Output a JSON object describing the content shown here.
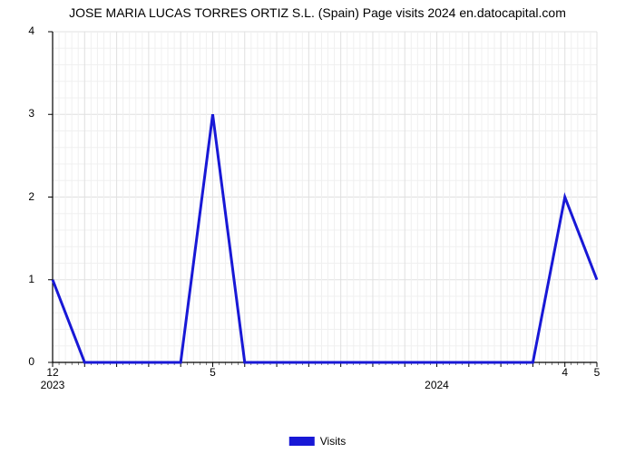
{
  "chart": {
    "type": "line",
    "title": "JOSE MARIA LUCAS TORRES ORTIZ S.L. (Spain) Page visits 2024 en.datocapital.com",
    "title_fontsize": 14,
    "background_color": "#ffffff",
    "grid_major_color": "#e0e0e0",
    "grid_minor_color": "#f0f0f0",
    "axis_color": "#000000",
    "ylim": [
      0,
      4
    ],
    "ytick_step_major": 1,
    "ytick_labels": [
      "0",
      "1",
      "2",
      "3",
      "4"
    ],
    "xtick_major_labels": [
      "12",
      "5",
      "4",
      "5"
    ],
    "xtick_year_labels": [
      "2023",
      "2024"
    ],
    "xtick_major_positions": [
      0,
      5,
      16,
      17
    ],
    "xtick_year_positions": [
      0,
      12
    ],
    "x_count": 18,
    "x_minor_per_major": 5,
    "series": {
      "name": "Visits",
      "color": "#1818d6",
      "line_width": 3,
      "values": [
        1,
        0,
        0,
        0,
        0,
        3,
        0,
        0,
        0,
        0,
        0,
        0,
        0,
        0,
        0,
        0,
        2,
        1
      ]
    },
    "legend": {
      "label": "Visits",
      "swatch_color": "#1818d6"
    },
    "label_fontsize": 12
  }
}
